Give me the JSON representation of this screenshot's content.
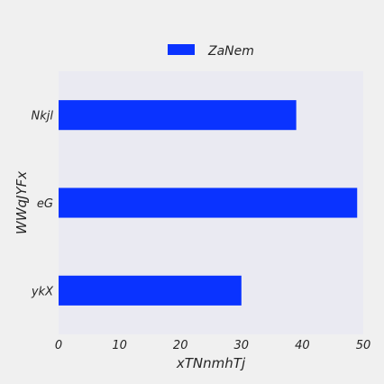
{
  "chart_data": {
    "type": "bar",
    "orientation": "horizontal",
    "title": "",
    "xlabel": "xTNnmhTj",
    "ylabel": "WWqJYFx",
    "categories": [
      "ykX",
      "eG",
      "Nkjl"
    ],
    "series": [
      {
        "name": "ZaNem",
        "values": [
          30,
          49,
          39
        ],
        "color": "#0a33ff"
      }
    ],
    "xlim": [
      0,
      50
    ],
    "xticks": [
      "0",
      "10",
      "20",
      "30",
      "40",
      "50"
    ],
    "grid": false,
    "legend_position": "top-center",
    "plot_background": "#eaeaf2",
    "figure_background": "#f0f0f0"
  }
}
